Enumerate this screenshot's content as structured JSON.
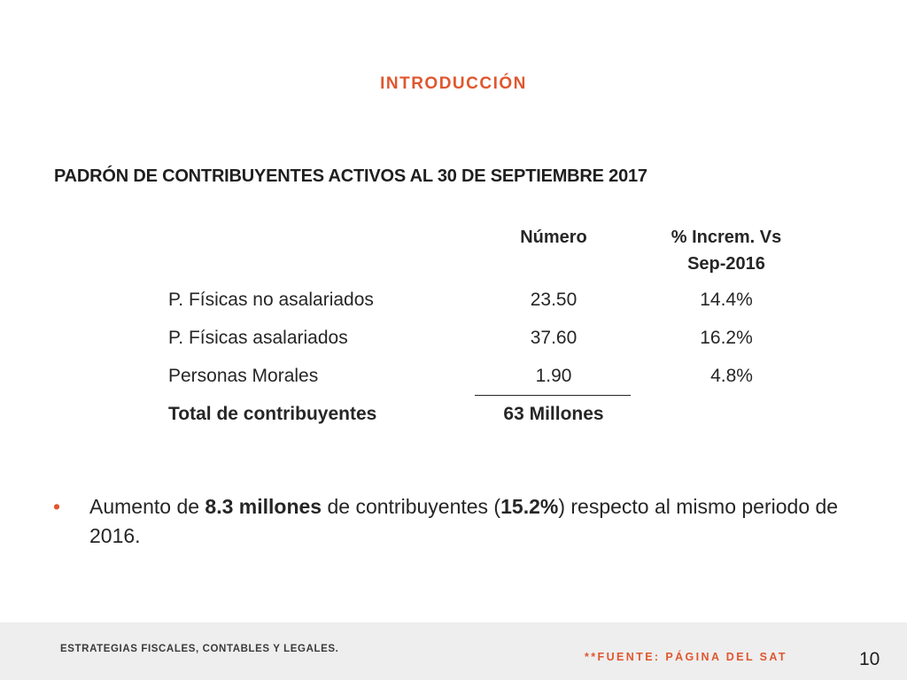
{
  "slide": {
    "section_title": "INTRODUCCIÓN",
    "subtitle": "PADRÓN DE CONTRIBUYENTES ACTIVOS AL 30 DE SEPTIEMBRE 2017"
  },
  "table": {
    "col_number": "Número",
    "col_pct_line1": "% Increm. Vs",
    "col_pct_line2": "Sep-2016",
    "rows": [
      {
        "label": "P. Físicas no asalariados",
        "number": "23.50",
        "pct": "14.4%"
      },
      {
        "label": "P. Físicas asalariados",
        "number": "37.60",
        "pct": "16.2%"
      },
      {
        "label": "Personas Morales",
        "number": "1.90",
        "pct": "4.8%"
      }
    ],
    "total": {
      "label": "Total de contribuyentes",
      "number": "63 Millones"
    }
  },
  "bullet": {
    "marker": "•",
    "t1": "Aumento de ",
    "b1": "8.3 millones",
    "t2": " de contribuyentes (",
    "b2": "15.2%",
    "t3": ") respecto al mismo periodo de 2016."
  },
  "footer": {
    "left_text": "ESTRATEGIAS FISCALES, CONTABLES Y LEGALES.",
    "source": "**FUENTE: PÁGINA DEL SAT",
    "page_number": "10"
  },
  "colors": {
    "accent": "#e0572f",
    "footer_bg": "#eeeeee"
  }
}
